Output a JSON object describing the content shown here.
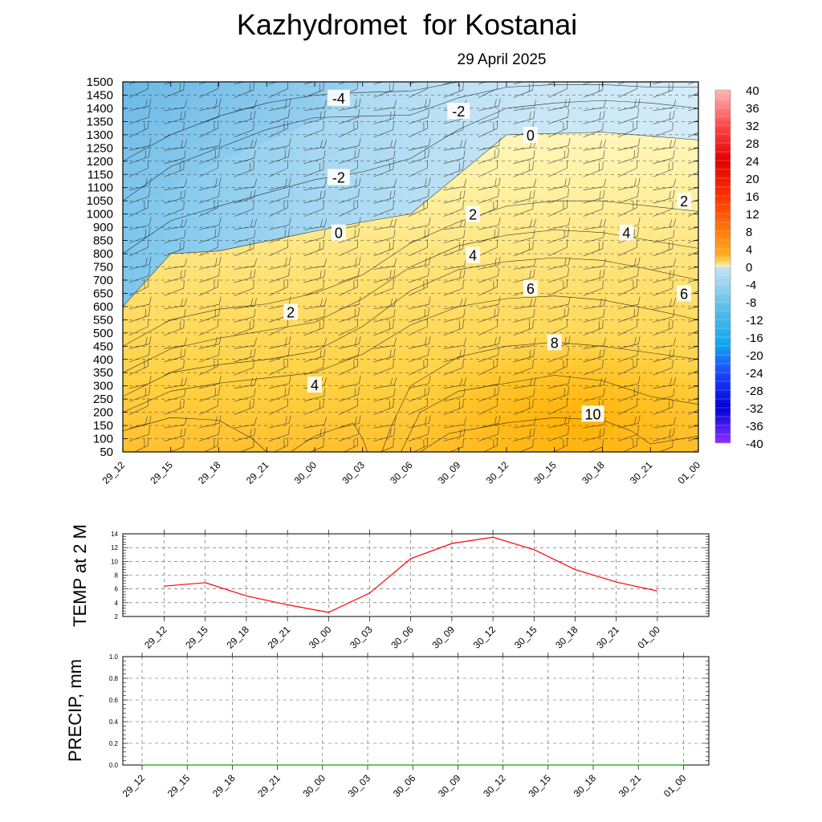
{
  "header": {
    "title": "Kazhydromet  for Kostanai",
    "date": "29 April 2025"
  },
  "chart_data": [
    {
      "type": "heatmap",
      "title": "Kazhydromet  for Kostanai",
      "subtitle": "29 April 2025",
      "x_tick_labels": [
        "29_12",
        "29_15",
        "29_18",
        "29_21",
        "30_00",
        "30_03",
        "30_06",
        "30_09",
        "30_12",
        "30_15",
        "30_18",
        "30_21",
        "01_00"
      ],
      "y_tick_labels": [
        "50",
        "100",
        "150",
        "200",
        "250",
        "300",
        "350",
        "400",
        "450",
        "500",
        "550",
        "600",
        "650",
        "700",
        "750",
        "800",
        "850",
        "900",
        "1000",
        "1050",
        "1100",
        "1150",
        "1200",
        "1250",
        "1300",
        "1350",
        "1400",
        "1450",
        "1500"
      ],
      "colorbar": {
        "tick_labels": [
          "40",
          "36",
          "32",
          "28",
          "24",
          "20",
          "16",
          "12",
          "8",
          "4",
          "0",
          "-4",
          "-8",
          "-12",
          "-16",
          "-20",
          "-24",
          "-28",
          "-32",
          "-36",
          "-40"
        ],
        "min": -40,
        "max": 40
      },
      "contour_labels": [
        {
          "text": "-4",
          "x_index": 4.5,
          "level_index": 26.8
        },
        {
          "text": "-2",
          "x_index": 7.0,
          "level_index": 25.8
        },
        {
          "text": "0",
          "x_index": 8.5,
          "level_index": 24.0
        },
        {
          "text": "-2",
          "x_index": 4.5,
          "level_index": 20.8
        },
        {
          "text": "2",
          "x_index": 11.7,
          "level_index": 19.0
        },
        {
          "text": "2",
          "x_index": 7.3,
          "level_index": 18.0
        },
        {
          "text": "0",
          "x_index": 4.5,
          "level_index": 16.6
        },
        {
          "text": "4",
          "x_index": 10.5,
          "level_index": 16.6
        },
        {
          "text": "4",
          "x_index": 7.3,
          "level_index": 14.9
        },
        {
          "text": "6",
          "x_index": 8.5,
          "level_index": 12.4
        },
        {
          "text": "6",
          "x_index": 11.7,
          "level_index": 12.0
        },
        {
          "text": "2",
          "x_index": 3.5,
          "level_index": 10.6
        },
        {
          "text": "8",
          "x_index": 9.0,
          "level_index": 8.3
        },
        {
          "text": "4",
          "x_index": 4.0,
          "level_index": 5.1
        },
        {
          "text": "10",
          "x_index": 9.8,
          "level_index": 2.9
        }
      ]
    },
    {
      "type": "line",
      "ylabel": "TEMP at 2 M",
      "ylim": [
        2,
        14
      ],
      "y_ticks": [
        "2",
        "4",
        "6",
        "8",
        "10",
        "12",
        "14"
      ],
      "categories": [
        "29_12",
        "29_15",
        "29_18",
        "29_21",
        "30_00",
        "30_03",
        "30_06",
        "30_09",
        "30_12",
        "30_15",
        "30_18",
        "30_21",
        "01_00"
      ],
      "values": [
        6.4,
        6.9,
        5.0,
        3.7,
        2.6,
        5.4,
        10.4,
        12.6,
        13.5,
        11.7,
        8.8,
        7.0,
        5.7
      ],
      "color": "#ff0000"
    },
    {
      "type": "line",
      "ylabel": "PRECIP, mm",
      "ylim": [
        0,
        1.0
      ],
      "y_ticks": [
        "0.0",
        "0.2",
        "0.4",
        "0.6",
        "0.8",
        "1.0"
      ],
      "categories": [
        "29_12",
        "29_15",
        "29_18",
        "29_21",
        "30_00",
        "30_03",
        "30_06",
        "30_09",
        "30_12",
        "30_15",
        "30_18",
        "30_21",
        "01_00"
      ],
      "values": [
        0,
        0,
        0,
        0,
        0,
        0,
        0,
        0,
        0,
        0,
        0,
        0,
        0
      ],
      "color": "#00aa00"
    }
  ]
}
